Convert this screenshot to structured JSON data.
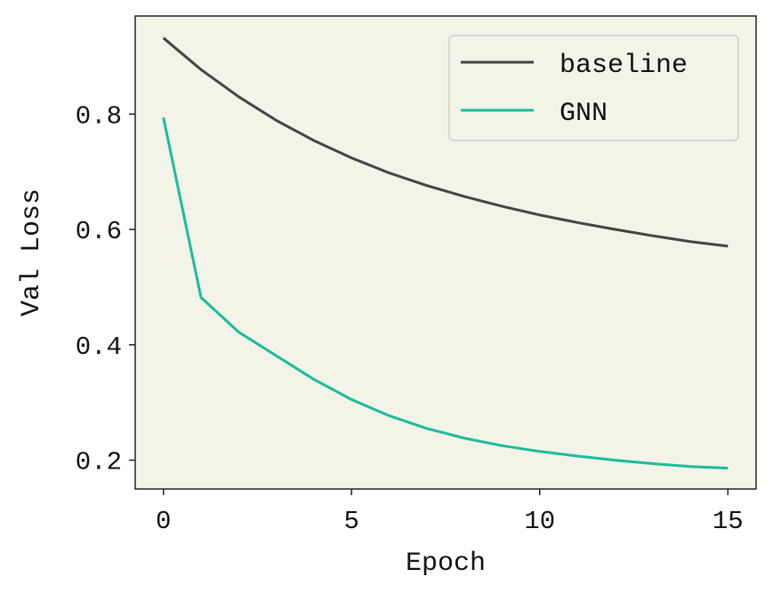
{
  "chart_data": {
    "type": "line",
    "title": "",
    "xlabel": "Epoch",
    "ylabel": "Val Loss",
    "xlim": [
      -0.75,
      15.75
    ],
    "ylim": [
      0.15,
      0.97
    ],
    "xticks": [
      0,
      5,
      10,
      15
    ],
    "xtick_labels": [
      "0",
      "5",
      "10",
      "15"
    ],
    "yticks": [
      0.2,
      0.4,
      0.6,
      0.8
    ],
    "ytick_labels": [
      "0.2",
      "0.4",
      "0.6",
      "0.8"
    ],
    "grid": false,
    "legend_position": "top-right",
    "background_color": "#f3f3e8",
    "x": [
      0,
      1,
      2,
      3,
      4,
      5,
      6,
      7,
      8,
      9,
      10,
      11,
      12,
      13,
      14,
      15
    ],
    "series": [
      {
        "name": "baseline",
        "color": "#444444",
        "values": [
          0.932,
          0.877,
          0.83,
          0.789,
          0.754,
          0.724,
          0.698,
          0.676,
          0.657,
          0.64,
          0.625,
          0.612,
          0.6,
          0.589,
          0.579,
          0.571
        ]
      },
      {
        "name": "GNN",
        "color": "#1abc9c",
        "values": [
          0.794,
          0.482,
          0.422,
          0.381,
          0.34,
          0.305,
          0.277,
          0.255,
          0.238,
          0.225,
          0.215,
          0.207,
          0.2,
          0.194,
          0.189,
          0.186
        ]
      }
    ]
  }
}
